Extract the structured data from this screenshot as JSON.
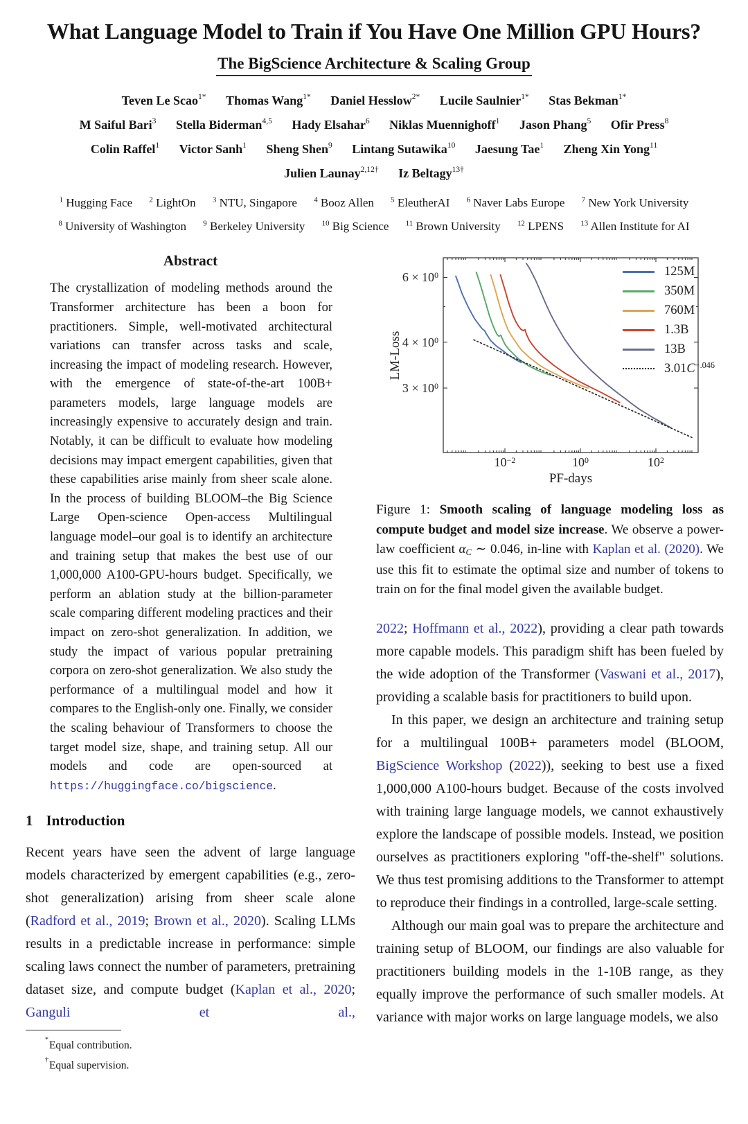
{
  "colors": {
    "link": "#33389f",
    "text": "#161616",
    "spine": "#3a3a3a"
  },
  "header": {
    "title": "What Language Model to Train if You Have One Million GPU Hours?",
    "subtitle": "The BigScience Architecture & Scaling Group",
    "author_rows": [
      [
        {
          "n": "Teven Le Scao",
          "s": "1*"
        },
        {
          "n": "Thomas Wang",
          "s": "1*"
        },
        {
          "n": "Daniel Hesslow",
          "s": "2*"
        },
        {
          "n": "Lucile Saulnier",
          "s": "1*"
        },
        {
          "n": "Stas Bekman",
          "s": "1*"
        }
      ],
      [
        {
          "n": "M Saiful Bari",
          "s": "3"
        },
        {
          "n": "Stella Biderman",
          "s": "4,5"
        },
        {
          "n": "Hady Elsahar",
          "s": "6"
        },
        {
          "n": "Niklas Muennighoff",
          "s": "1"
        },
        {
          "n": "Jason Phang",
          "s": "5"
        },
        {
          "n": "Ofir Press",
          "s": "8"
        }
      ],
      [
        {
          "n": "Colin Raffel",
          "s": "1"
        },
        {
          "n": "Victor Sanh",
          "s": "1"
        },
        {
          "n": "Sheng Shen",
          "s": "9"
        },
        {
          "n": "Lintang Sutawika",
          "s": "10"
        },
        {
          "n": "Jaesung Tae",
          "s": "1"
        },
        {
          "n": "Zheng Xin Yong",
          "s": "11"
        }
      ],
      [
        {
          "n": "Julien Launay",
          "s": "2,12†"
        },
        {
          "n": "Iz Beltagy",
          "s": "13†"
        }
      ]
    ],
    "affiliation_rows": [
      [
        {
          "s": "1",
          "n": "Hugging Face"
        },
        {
          "s": "2",
          "n": "LightOn"
        },
        {
          "s": "3",
          "n": "NTU, Singapore"
        },
        {
          "s": "4",
          "n": "Booz Allen"
        },
        {
          "s": "5",
          "n": "EleutherAI"
        },
        {
          "s": "6",
          "n": "Naver Labs Europe"
        },
        {
          "s": "7",
          "n": "New York University"
        }
      ],
      [
        {
          "s": "8",
          "n": "University of Washington"
        },
        {
          "s": "9",
          "n": "Berkeley University"
        },
        {
          "s": "10",
          "n": "Big Science"
        },
        {
          "s": "11",
          "n": "Brown University"
        },
        {
          "s": "12",
          "n": "LPENS"
        },
        {
          "s": "13",
          "n": "Allen Institute for AI"
        }
      ]
    ]
  },
  "left_column": {
    "abstract_heading": "Abstract",
    "abstract": {
      "segments": [
        {
          "t": "The crystallization of modeling methods around the Transformer architecture has been a boon for practitioners. Simple, well-motivated architectural variations can transfer across tasks and scale, increasing the impact of modeling research. However, with the emergence of state-of-the-art 100B+ parameters models, large language models are increasingly expensive to accurately design and train. Notably, it can be difficult to evaluate how modeling decisions may impact emergent capabilities, given that these capabilities arise mainly from sheer scale alone. In the process of building BLOOM–the Big Science Large Open-science Open-access Multilingual language model–our goal is to identify an architecture and training setup that makes the best use of our 1,000,000 A100-GPU-hours budget. Specifically, we perform an ablation study at the billion-parameter scale comparing different modeling practices and their impact on zero-shot generalization. In addition, we study the impact of various popular pretraining corpora on zero-shot generalization. We also study the performance of a multilingual model and how it compares to the English-only one. Finally, we consider the scaling behaviour of Transformers to choose the target model size, shape, and training setup. All our models and code are open-sourced at "
        },
        {
          "t": "https://huggingface.co/bigscience",
          "c": "mono"
        },
        {
          "t": "."
        }
      ]
    },
    "section1": {
      "number": "1",
      "title": "Introduction"
    },
    "intro_p1": {
      "segments": [
        {
          "t": "Recent years have seen the advent of large language models characterized by emergent capabilities (e.g., zero-shot generalization) arising from sheer scale alone ("
        },
        {
          "t": "Radford et al., 2019",
          "c": "link"
        },
        {
          "t": "; "
        },
        {
          "t": "Brown et al., 2020",
          "c": "link"
        },
        {
          "t": "). Scaling LLMs results in a predictable increase in performance: simple scaling laws connect the number of parameters, pretraining dataset size, and compute budget ("
        },
        {
          "t": "Kaplan et al., 2020",
          "c": "link"
        },
        {
          "t": "; "
        },
        {
          "t": "Ganguli et al.,",
          "c": "link"
        }
      ]
    },
    "footnotes": [
      {
        "symbol": "*",
        "text": "Equal contribution."
      },
      {
        "symbol": "†",
        "text": "Equal supervision."
      }
    ]
  },
  "figure": {
    "caption": {
      "segments": [
        {
          "t": "Figure 1: "
        },
        {
          "t": "Smooth scaling of language modeling loss as compute budget and model size increase",
          "c": "bold"
        },
        {
          "t": ". We observe a power-law coefficient "
        },
        {
          "t": "α",
          "c": "italic"
        },
        {
          "t": "C",
          "c": "subi"
        },
        {
          "t": " ∼ 0.046, in-line with "
        },
        {
          "t": "Kaplan et al. (2020)",
          "c": "link"
        },
        {
          "t": ". We use this fit to estimate the optimal size and number of tokens to train on for the final model given the available budget."
        }
      ]
    },
    "chart_data": {
      "type": "line",
      "title": "",
      "xlabel": "PF-days",
      "ylabel": "LM-Loss",
      "xscale": "log",
      "yscale": "log",
      "xlim": [
        0.000233,
        1300
      ],
      "ylim": [
        2.0,
        6.9
      ],
      "grid": false,
      "legend_position": "upper right",
      "xticks": [
        {
          "value": 0.01,
          "label": [
            {
              "t": "10"
            },
            {
              "t": "−2",
              "c": "sup"
            }
          ]
        },
        {
          "value": 1,
          "label": [
            {
              "t": "10"
            },
            {
              "t": "0",
              "c": "sup"
            }
          ]
        },
        {
          "value": 100,
          "label": [
            {
              "t": "10"
            },
            {
              "t": "2",
              "c": "sup"
            }
          ]
        }
      ],
      "yticks": [
        {
          "value": 6,
          "label": [
            {
              "t": "6 × 10"
            },
            {
              "t": "0",
              "c": "sup"
            }
          ]
        },
        {
          "value": 4,
          "label": [
            {
              "t": "4 × 10"
            },
            {
              "t": "0",
              "c": "sup"
            }
          ]
        },
        {
          "value": 3,
          "label": [
            {
              "t": "3 × 10"
            },
            {
              "t": "0",
              "c": "sup"
            }
          ]
        }
      ],
      "series": [
        {
          "name": "125M",
          "color": "#4c72b0",
          "points": [
            [
              0.0005,
              6.05
            ],
            [
              0.0006,
              5.75
            ],
            [
              0.00072,
              5.45
            ],
            [
              0.00088,
              5.2
            ],
            [
              0.00105,
              5.0
            ],
            [
              0.0013,
              4.8
            ],
            [
              0.0016,
              4.62
            ],
            [
              0.002,
              4.48
            ],
            [
              0.0025,
              4.35
            ],
            [
              0.0029,
              4.3
            ],
            [
              0.0032,
              4.22
            ],
            [
              0.0037,
              4.12
            ],
            [
              0.0043,
              4.03
            ],
            [
              0.005,
              3.97
            ],
            [
              0.006,
              3.9
            ],
            [
              0.0072,
              3.85
            ],
            [
              0.0086,
              3.8
            ],
            [
              0.0105,
              3.74
            ],
            [
              0.013,
              3.68
            ],
            [
              0.0165,
              3.62
            ],
            [
              0.021,
              3.57
            ],
            [
              0.027,
              3.52
            ]
          ]
        },
        {
          "name": "350M",
          "color": "#55a868",
          "points": [
            [
              0.00175,
              6.2
            ],
            [
              0.00205,
              5.9
            ],
            [
              0.0024,
              5.6
            ],
            [
              0.0028,
              5.3
            ],
            [
              0.0033,
              5.0
            ],
            [
              0.0039,
              4.72
            ],
            [
              0.0046,
              4.5
            ],
            [
              0.0054,
              4.32
            ],
            [
              0.0062,
              4.2
            ],
            [
              0.007,
              4.15
            ],
            [
              0.0078,
              4.18
            ],
            [
              0.0086,
              4.08
            ],
            [
              0.01,
              3.95
            ],
            [
              0.012,
              3.85
            ],
            [
              0.015,
              3.76
            ],
            [
              0.019,
              3.67
            ],
            [
              0.024,
              3.59
            ],
            [
              0.031,
              3.52
            ],
            [
              0.042,
              3.45
            ],
            [
              0.056,
              3.4
            ],
            [
              0.075,
              3.35
            ],
            [
              0.1,
              3.31
            ],
            [
              0.14,
              3.27
            ],
            [
              0.19,
              3.24
            ]
          ]
        },
        {
          "name": "760M",
          "color": "#dfa550",
          "points": [
            [
              0.0042,
              6.1
            ],
            [
              0.0049,
              5.8
            ],
            [
              0.0057,
              5.5
            ],
            [
              0.0066,
              5.2
            ],
            [
              0.0077,
              4.92
            ],
            [
              0.009,
              4.68
            ],
            [
              0.0105,
              4.48
            ],
            [
              0.0122,
              4.32
            ],
            [
              0.0142,
              4.2
            ],
            [
              0.0165,
              4.1
            ],
            [
              0.0195,
              4.0
            ],
            [
              0.023,
              3.9
            ],
            [
              0.028,
              3.8
            ],
            [
              0.035,
              3.72
            ],
            [
              0.045,
              3.63
            ],
            [
              0.06,
              3.55
            ],
            [
              0.08,
              3.47
            ],
            [
              0.11,
              3.4
            ],
            [
              0.16,
              3.33
            ],
            [
              0.23,
              3.27
            ],
            [
              0.34,
              3.2
            ],
            [
              0.52,
              3.14
            ],
            [
              0.8,
              3.08
            ],
            [
              1.2,
              3.03
            ],
            [
              1.6,
              3.0
            ]
          ]
        },
        {
          "name": "1.3B",
          "color": "#c8442e",
          "points": [
            [
              0.0076,
              6.1
            ],
            [
              0.0088,
              5.8
            ],
            [
              0.0103,
              5.5
            ],
            [
              0.012,
              5.2
            ],
            [
              0.014,
              4.95
            ],
            [
              0.0165,
              4.72
            ],
            [
              0.0195,
              4.55
            ],
            [
              0.023,
              4.42
            ],
            [
              0.027,
              4.33
            ],
            [
              0.031,
              4.3
            ],
            [
              0.034,
              4.33
            ],
            [
              0.038,
              4.18
            ],
            [
              0.044,
              4.05
            ],
            [
              0.052,
              3.95
            ],
            [
              0.063,
              3.85
            ],
            [
              0.08,
              3.75
            ],
            [
              0.105,
              3.65
            ],
            [
              0.14,
              3.56
            ],
            [
              0.19,
              3.47
            ],
            [
              0.27,
              3.38
            ],
            [
              0.4,
              3.29
            ],
            [
              0.6,
              3.21
            ],
            [
              0.9,
              3.13
            ],
            [
              1.4,
              3.06
            ],
            [
              2.2,
              2.99
            ],
            [
              3.5,
              2.92
            ],
            [
              5.5,
              2.85
            ],
            [
              8,
              2.79
            ],
            [
              11,
              2.74
            ]
          ]
        },
        {
          "name": "13B",
          "color": "#686d8d",
          "points": [
            [
              0.037,
              6.55
            ],
            [
              0.044,
              6.38
            ],
            [
              0.053,
              6.15
            ],
            [
              0.065,
              5.9
            ],
            [
              0.08,
              5.62
            ],
            [
              0.098,
              5.35
            ],
            [
              0.12,
              5.1
            ],
            [
              0.15,
              4.85
            ],
            [
              0.19,
              4.62
            ],
            [
              0.24,
              4.42
            ],
            [
              0.3,
              4.25
            ],
            [
              0.38,
              4.08
            ],
            [
              0.5,
              3.92
            ],
            [
              0.66,
              3.77
            ],
            [
              0.9,
              3.63
            ],
            [
              1.25,
              3.5
            ],
            [
              1.75,
              3.38
            ],
            [
              2.5,
              3.27
            ],
            [
              3.6,
              3.16
            ],
            [
              5.2,
              3.06
            ],
            [
              7.5,
              2.97
            ],
            [
              11,
              2.88
            ],
            [
              16,
              2.8
            ],
            [
              24,
              2.71
            ],
            [
              36,
              2.63
            ],
            [
              55,
              2.56
            ],
            [
              85,
              2.49
            ],
            [
              130,
              2.43
            ],
            [
              185,
              2.38
            ],
            [
              250,
              2.34
            ]
          ]
        },
        {
          "name": "3.01C^-.046",
          "color": "#2b2b2b",
          "dashed": true,
          "label_segments": [
            {
              "t": "3.01"
            },
            {
              "t": "C",
              "c": "italic"
            },
            {
              "t": "−.046",
              "c": "sup"
            }
          ],
          "points": [
            [
              0.0015,
              4.06
            ],
            [
              1000,
              2.19
            ]
          ]
        }
      ]
    }
  },
  "right_column": {
    "p1": {
      "segments": [
        {
          "t": "2022",
          "c": "link"
        },
        {
          "t": "; "
        },
        {
          "t": "Hoffmann et al., 2022",
          "c": "link"
        },
        {
          "t": "), providing a clear path towards more capable models. This paradigm shift has been fueled by the wide adoption of the Transformer ("
        },
        {
          "t": "Vaswani et al., 2017",
          "c": "link"
        },
        {
          "t": "), providing a scalable basis for practitioners to build upon."
        }
      ]
    },
    "p2": {
      "segments": [
        {
          "t": "In this paper, we design an architecture and training setup for a multilingual 100B+ parameters model (BLOOM, "
        },
        {
          "t": "BigScience Workshop",
          "c": "link"
        },
        {
          "t": " ("
        },
        {
          "t": "2022",
          "c": "link"
        },
        {
          "t": ")), seeking to best use a fixed 1,000,000 A100-hours budget. Because of the costs involved with training large language models, we cannot exhaustively explore the landscape of possible models. Instead, we position ourselves as practitioners exploring \"off-the-shelf\" solutions. We thus test promising additions to the Transformer to attempt to reproduce their findings in a controlled, large-scale setting."
        }
      ]
    },
    "p3": {
      "segments": [
        {
          "t": "Although our main goal was to prepare the architecture and training setup of BLOOM, our findings are also valuable for practitioners building models in the 1-10B range, as they equally improve the performance of such smaller models. At variance with major works on large language models, we also"
        }
      ]
    }
  }
}
